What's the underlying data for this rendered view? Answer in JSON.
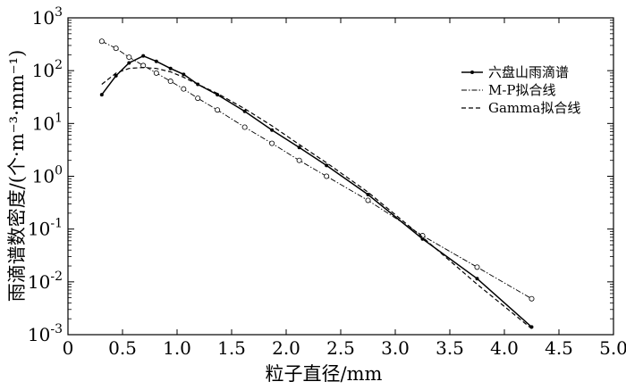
{
  "chart_data": {
    "type": "line",
    "title": "",
    "xlabel": "粒子直径/mm",
    "ylabel": "雨滴谱数密度/(个·m⁻³·mm⁻¹)",
    "xlim": [
      0,
      5
    ],
    "ylim": [
      0.001,
      1000
    ],
    "yscale": "log",
    "grid": false,
    "legend_position": "top-right",
    "x_ticks": [
      "0",
      "0.5",
      "1.0",
      "1.5",
      "2.0",
      "2.5",
      "3.0",
      "3.5",
      "4.0",
      "4.5",
      "5.0"
    ],
    "y_ticks": [
      {
        "base": "10",
        "exp": "-3",
        "value": 0.001
      },
      {
        "base": "10",
        "exp": "-2",
        "value": 0.01
      },
      {
        "base": "10",
        "exp": "-1",
        "value": 0.1
      },
      {
        "base": "10",
        "exp": "0",
        "value": 1
      },
      {
        "base": "10",
        "exp": "1",
        "value": 10
      },
      {
        "base": "10",
        "exp": "2",
        "value": 100
      },
      {
        "base": "10",
        "exp": "3",
        "value": 1000
      }
    ],
    "series": [
      {
        "name": "六盘山雨滴谱",
        "style": "solid-dot",
        "color": "#000000",
        "points": [
          [
            0.31,
            35
          ],
          [
            0.44,
            80
          ],
          [
            0.56,
            140
          ],
          [
            0.69,
            190
          ],
          [
            0.81,
            150
          ],
          [
            0.94,
            110
          ],
          [
            1.06,
            85
          ],
          [
            1.19,
            55
          ],
          [
            1.37,
            35
          ],
          [
            1.62,
            17
          ],
          [
            1.87,
            7.5
          ],
          [
            2.12,
            3.5
          ],
          [
            2.37,
            1.6
          ],
          [
            2.75,
            0.45
          ],
          [
            3.25,
            0.065
          ],
          [
            3.75,
            0.0115
          ],
          [
            4.25,
            0.0014
          ]
        ]
      },
      {
        "name": "M-P拟合线",
        "style": "dash-dot-circle",
        "color": "#000000",
        "points": [
          [
            0.31,
            360
          ],
          [
            0.44,
            265
          ],
          [
            0.56,
            180
          ],
          [
            0.69,
            125
          ],
          [
            0.81,
            90
          ],
          [
            0.94,
            63
          ],
          [
            1.06,
            45
          ],
          [
            1.19,
            30
          ],
          [
            1.37,
            18
          ],
          [
            1.62,
            8.5
          ],
          [
            1.87,
            4.2
          ],
          [
            2.12,
            2.0
          ],
          [
            2.37,
            1.0
          ],
          [
            2.75,
            0.35
          ],
          [
            3.25,
            0.075
          ],
          [
            3.75,
            0.019
          ],
          [
            4.25,
            0.0048
          ]
        ]
      },
      {
        "name": "Gamma拟合线",
        "style": "dashed",
        "color": "#000000",
        "points": [
          [
            0.31,
            55
          ],
          [
            0.44,
            90
          ],
          [
            0.56,
            110
          ],
          [
            0.69,
            115
          ],
          [
            0.81,
            110
          ],
          [
            0.94,
            95
          ],
          [
            1.06,
            75
          ],
          [
            1.19,
            55
          ],
          [
            1.37,
            37
          ],
          [
            1.62,
            19
          ],
          [
            1.87,
            9
          ],
          [
            2.12,
            4
          ],
          [
            2.37,
            1.8
          ],
          [
            2.75,
            0.5
          ],
          [
            3.25,
            0.07
          ],
          [
            3.75,
            0.009
          ],
          [
            4.25,
            0.0013
          ]
        ]
      }
    ]
  }
}
